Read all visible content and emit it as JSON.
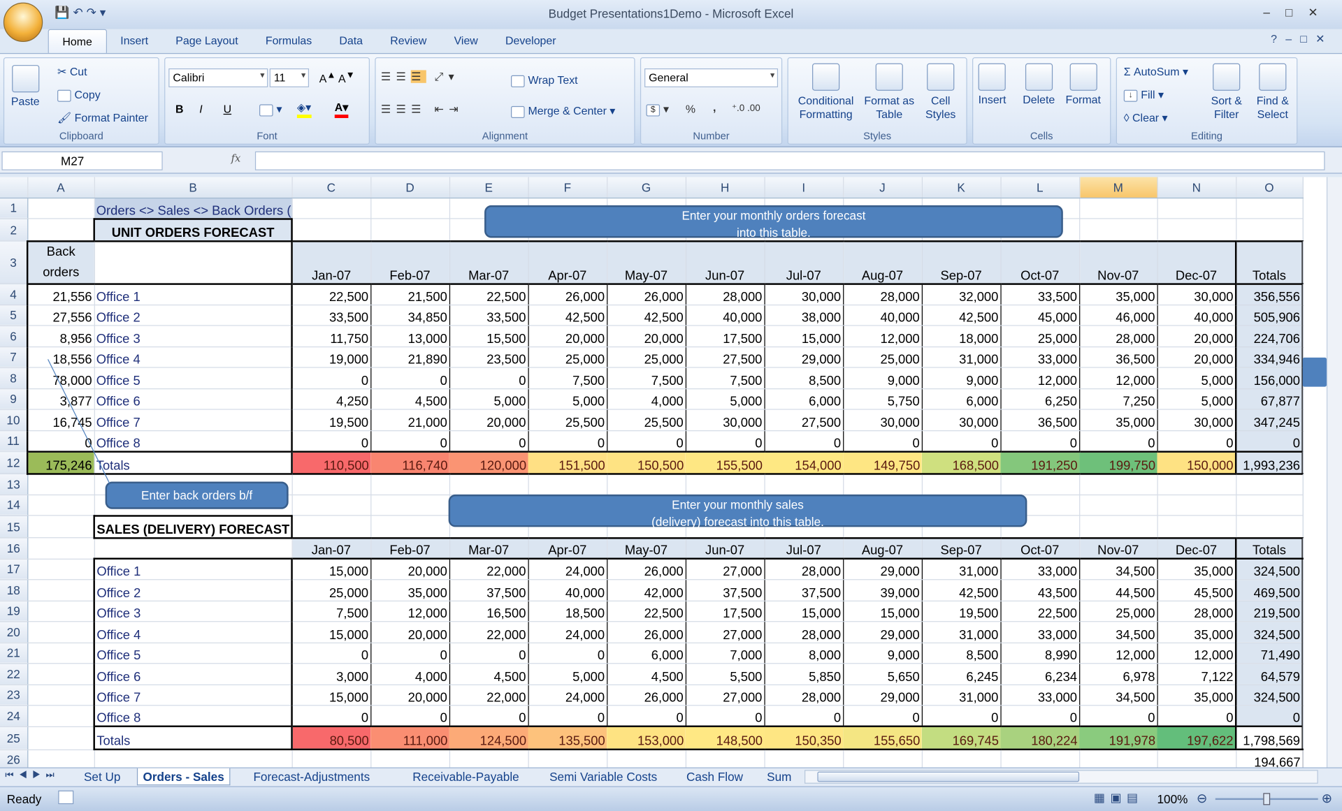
{
  "window": {
    "title": "Budget Presentations1Demo - Microsoft Excel"
  },
  "ribbon_tabs": [
    "Home",
    "Insert",
    "Page Layout",
    "Formulas",
    "Data",
    "Review",
    "View",
    "Developer"
  ],
  "clipboard": {
    "paste": "Paste",
    "cut": "Cut",
    "copy": "Copy",
    "format_painter": "Format Painter",
    "label": "Clipboard"
  },
  "font": {
    "name": "Calibri",
    "size": "11",
    "label": "Font",
    "bold": "B",
    "italic": "I",
    "underline": "U"
  },
  "alignment": {
    "wrap": "Wrap Text",
    "merge": "Merge & Center",
    "label": "Alignment"
  },
  "number": {
    "format": "General",
    "label": "Number",
    "percent": "%",
    "comma": ","
  },
  "styles": {
    "conditional": "Conditional Formatting",
    "format_table": "Format as Table",
    "cell_styles": "Cell Styles",
    "label": "Styles"
  },
  "cells": {
    "insert": "Insert",
    "delete": "Delete",
    "format": "Format",
    "label": "Cells"
  },
  "editing": {
    "autosum": "AutoSum",
    "fill": "Fill",
    "clear": "Clear",
    "sort": "Sort & Filter",
    "find": "Find & Select",
    "label": "Editing"
  },
  "formula_bar": {
    "name_box": "M27",
    "fx": "fx",
    "value": ""
  },
  "columns": [
    "A",
    "B",
    "C",
    "D",
    "E",
    "F",
    "G",
    "H",
    "I",
    "J",
    "K",
    "L",
    "M",
    "N",
    "O"
  ],
  "selected_column": "M",
  "sheet": {
    "title": "Orders <> Sales <> Back Orders (Units)",
    "orders_header": "UNIT ORDERS FORECAST",
    "back_orders_label": [
      "Back",
      "orders"
    ],
    "months": [
      "Jan-07",
      "Feb-07",
      "Mar-07",
      "Apr-07",
      "May-07",
      "Jun-07",
      "Jul-07",
      "Aug-07",
      "Sep-07",
      "Oct-07",
      "Nov-07",
      "Dec-07"
    ],
    "totals_label": "Totals",
    "orders": [
      {
        "back": "21,556",
        "office": "Office 1",
        "values": [
          "22,500",
          "21,500",
          "22,500",
          "26,000",
          "26,000",
          "28,000",
          "30,000",
          "28,000",
          "32,000",
          "33,500",
          "35,000",
          "30,000"
        ],
        "total": "356,556"
      },
      {
        "back": "27,556",
        "office": "Office 2",
        "values": [
          "33,500",
          "34,850",
          "33,500",
          "42,500",
          "42,500",
          "40,000",
          "38,000",
          "40,000",
          "42,500",
          "45,000",
          "46,000",
          "40,000"
        ],
        "total": "505,906"
      },
      {
        "back": "8,956",
        "office": "Office 3",
        "values": [
          "11,750",
          "13,000",
          "15,500",
          "20,000",
          "20,000",
          "17,500",
          "15,000",
          "12,000",
          "18,000",
          "25,000",
          "28,000",
          "20,000"
        ],
        "total": "224,706"
      },
      {
        "back": "18,556",
        "office": "Office 4",
        "values": [
          "19,000",
          "21,890",
          "23,500",
          "25,000",
          "25,000",
          "27,500",
          "29,000",
          "25,000",
          "31,000",
          "33,000",
          "36,500",
          "20,000"
        ],
        "total": "334,946"
      },
      {
        "back": "78,000",
        "office": "Office 5",
        "values": [
          "0",
          "0",
          "0",
          "7,500",
          "7,500",
          "7,500",
          "8,500",
          "9,000",
          "9,000",
          "12,000",
          "12,000",
          "5,000"
        ],
        "total": "156,000"
      },
      {
        "back": "3,877",
        "office": "Office 6",
        "values": [
          "4,250",
          "4,500",
          "5,000",
          "5,000",
          "4,000",
          "5,000",
          "6,000",
          "5,750",
          "6,000",
          "6,250",
          "7,250",
          "5,000"
        ],
        "total": "67,877"
      },
      {
        "back": "16,745",
        "office": "Office 7",
        "values": [
          "19,500",
          "21,000",
          "20,000",
          "25,500",
          "25,500",
          "30,000",
          "27,500",
          "30,000",
          "30,000",
          "36,500",
          "35,000",
          "30,000"
        ],
        "total": "347,245"
      },
      {
        "back": "0",
        "office": "Office 8",
        "values": [
          "0",
          "0",
          "0",
          "0",
          "0",
          "0",
          "0",
          "0",
          "0",
          "0",
          "0",
          "0"
        ],
        "total": "0"
      }
    ],
    "orders_totals": {
      "back": "175,246",
      "values": [
        "110,500",
        "116,740",
        "120,000",
        "151,500",
        "150,500",
        "155,500",
        "154,000",
        "149,750",
        "168,500",
        "191,250",
        "199,750",
        "150,000"
      ],
      "total": "1,993,236",
      "colors": [
        "#f8696b",
        "#f98570",
        "#fa9473",
        "#ffe084",
        "#fee383",
        "#fee783",
        "#fee883",
        "#fee683",
        "#cfe07f",
        "#84c77c",
        "#6ec07a",
        "#fee283"
      ]
    },
    "sales_header": "SALES (DELIVERY) FORECAST",
    "sales": [
      {
        "office": "Office 1",
        "values": [
          "15,000",
          "20,000",
          "22,000",
          "24,000",
          "26,000",
          "27,000",
          "28,000",
          "29,000",
          "31,000",
          "33,000",
          "34,500",
          "35,000"
        ],
        "total": "324,500"
      },
      {
        "office": "Office 2",
        "values": [
          "25,000",
          "35,000",
          "37,500",
          "40,000",
          "42,000",
          "37,500",
          "37,500",
          "39,000",
          "42,500",
          "43,500",
          "44,500",
          "45,500"
        ],
        "total": "469,500"
      },
      {
        "office": "Office 3",
        "values": [
          "7,500",
          "12,000",
          "16,500",
          "18,500",
          "22,500",
          "17,500",
          "15,000",
          "15,000",
          "19,500",
          "22,500",
          "25,000",
          "28,000"
        ],
        "total": "219,500"
      },
      {
        "office": "Office 4",
        "values": [
          "15,000",
          "20,000",
          "22,000",
          "24,000",
          "26,000",
          "27,000",
          "28,000",
          "29,000",
          "31,000",
          "33,000",
          "34,500",
          "35,000"
        ],
        "total": "324,500"
      },
      {
        "office": "Office 5",
        "values": [
          "0",
          "0",
          "0",
          "0",
          "6,000",
          "7,000",
          "8,000",
          "9,000",
          "8,500",
          "8,990",
          "12,000",
          "12,000"
        ],
        "total": "71,490"
      },
      {
        "office": "Office 6",
        "values": [
          "3,000",
          "4,000",
          "4,500",
          "5,000",
          "4,500",
          "5,500",
          "5,850",
          "5,650",
          "6,245",
          "6,234",
          "6,978",
          "7,122"
        ],
        "total": "64,579"
      },
      {
        "office": "Office 7",
        "values": [
          "15,000",
          "20,000",
          "22,000",
          "24,000",
          "26,000",
          "27,000",
          "28,000",
          "29,000",
          "31,000",
          "33,000",
          "34,500",
          "35,000"
        ],
        "total": "324,500"
      },
      {
        "office": "Office 8",
        "values": [
          "0",
          "0",
          "0",
          "0",
          "0",
          "0",
          "0",
          "0",
          "0",
          "0",
          "0",
          "0"
        ],
        "total": "0"
      }
    ],
    "sales_totals": {
      "values": [
        "80,500",
        "111,000",
        "124,500",
        "135,500",
        "153,000",
        "148,500",
        "150,350",
        "155,650",
        "169,745",
        "180,224",
        "191,978",
        "197,622"
      ],
      "total": "1,798,569",
      "colors": [
        "#f8696b",
        "#fa8e72",
        "#fcaa77",
        "#fdc27c",
        "#fee382",
        "#ffe884",
        "#fee683",
        "#f4e683",
        "#c3dd81",
        "#a9d27f",
        "#8acb7e",
        "#63be7b"
      ]
    },
    "row26_total": "194,667"
  },
  "callouts": {
    "orders": [
      "Enter your monthly  orders forecast",
      "into this table."
    ],
    "back": "Enter back orders b/f",
    "sales": [
      "Enter your monthly sales",
      "(delivery) forecast into this table."
    ]
  },
  "sheet_tabs": [
    "Set Up",
    "Orders - Sales",
    "Forecast-Adjustments",
    "Receivable-Payable",
    "Semi Variable Costs",
    "Cash Flow",
    "Sum"
  ],
  "active_sheet": "Orders - Sales",
  "status": {
    "ready": "Ready",
    "zoom": "100%"
  }
}
